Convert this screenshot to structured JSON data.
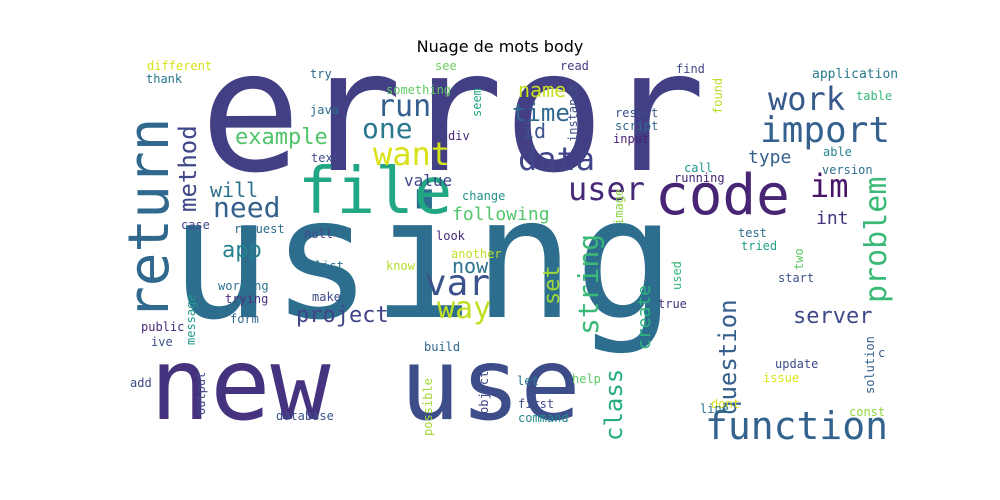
{
  "title": "Nuage de mots body",
  "words": [
    "error",
    "using",
    "new",
    "use",
    "file",
    "code",
    "return",
    "function",
    "import",
    "var",
    "data",
    "work",
    "want",
    "user",
    "one",
    "run",
    "im",
    "way",
    "problem",
    "string",
    "example",
    "need",
    "method",
    "question",
    "class",
    "app",
    "project",
    "server",
    "time",
    "set",
    "name",
    "will",
    "id",
    "now",
    "type",
    "following",
    "create",
    "int",
    "value",
    "application",
    "found",
    "table",
    "instance",
    "result",
    "script",
    "input",
    "call",
    "able",
    "version",
    "running",
    "change",
    "image",
    "test",
    "tried",
    "two",
    "start",
    "used",
    "true",
    "solution",
    "issue",
    "update",
    "help",
    "let",
    "first",
    "command",
    "object",
    "possible",
    "dont",
    "line",
    "const",
    "c",
    "different",
    "thank",
    "try",
    "see",
    "read",
    "find",
    "something",
    "seem",
    "java",
    "div",
    "text",
    "look",
    "null",
    "request",
    "case",
    "another",
    "know",
    "list",
    "working",
    "trying",
    "make",
    "form",
    "message",
    "public",
    "ive",
    "add",
    "output",
    "database",
    "build"
  ]
}
